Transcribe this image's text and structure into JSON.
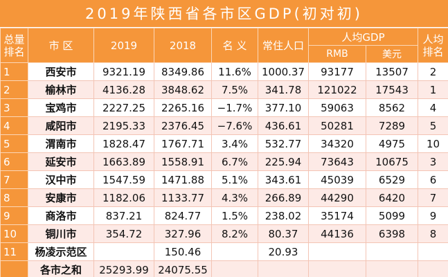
{
  "table": {
    "title": "2019年陕西省各市区GDP(初对初)",
    "header": [
      "总量排名",
      "市 区",
      "2019",
      "2018",
      "名 义",
      "常住人口",
      "人均GDP",
      "人均排名"
    ],
    "subheader": [
      "RMB",
      "美元"
    ],
    "rows": [
      [
        "1",
        "西安市",
        "9321.19",
        "8349.86",
        "11.6%",
        "1000.37",
        "93177",
        "13507",
        "2"
      ],
      [
        "2",
        "榆林市",
        "4136.28",
        "3848.62",
        "7.5%",
        "341.78",
        "121022",
        "17543",
        "1"
      ],
      [
        "3",
        "宝鸡市",
        "2227.25",
        "2265.16",
        "−1.7%",
        "377.10",
        "59063",
        "8562",
        "4"
      ],
      [
        "4",
        "咸阳市",
        "2195.33",
        "2376.45",
        "−7.6%",
        "436.61",
        "50281",
        "7289",
        "5"
      ],
      [
        "5",
        "渭南市",
        "1828.47",
        "1767.71",
        "3.4%",
        "532.77",
        "34320",
        "4975",
        "10"
      ],
      [
        "6",
        "延安市",
        "1663.89",
        "1558.91",
        "6.7%",
        "225.94",
        "73643",
        "10675",
        "3"
      ],
      [
        "7",
        "汉中市",
        "1547.59",
        "1471.88",
        "5.1%",
        "343.61",
        "45039",
        "6529",
        "6"
      ],
      [
        "8",
        "安康市",
        "1182.06",
        "1133.77",
        "4.3%",
        "266.89",
        "44290",
        "6420",
        "7"
      ],
      [
        "9",
        "商洛市",
        "837.21",
        "824.77",
        "1.5%",
        "238.02",
        "35174",
        "5099",
        "9"
      ],
      [
        "10",
        "铜川市",
        "354.72",
        "327.96",
        "8.2%",
        "80.37",
        "44136",
        "6398",
        "8"
      ],
      [
        "11",
        "杨凌示范区",
        null,
        "150.46",
        null,
        "20.93",
        null,
        null,
        null
      ],
      [
        null,
        "各市之和",
        "25293.99",
        "24075.55",
        null,
        null,
        null,
        null,
        null
      ]
    ]
  }
}
